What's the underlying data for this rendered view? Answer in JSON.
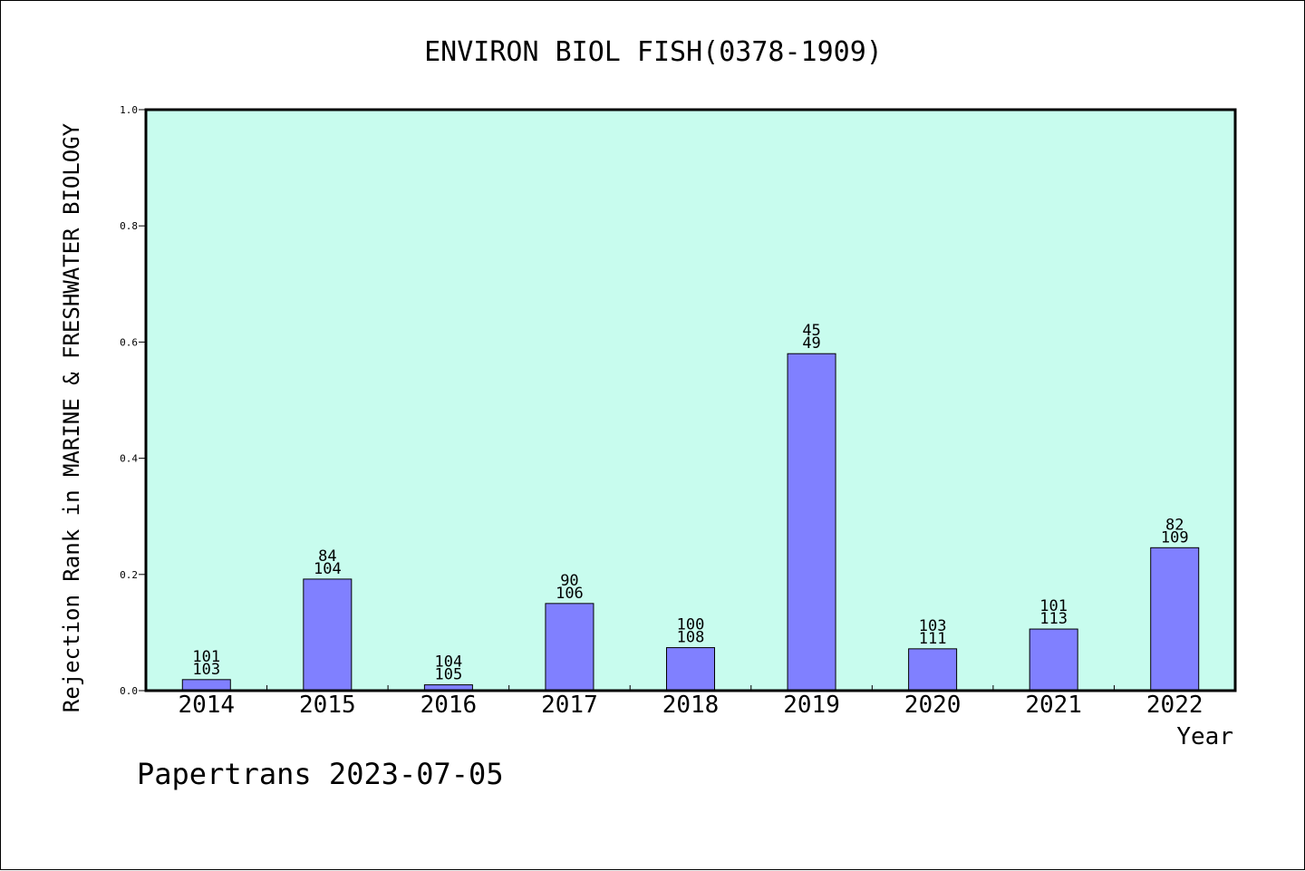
{
  "chart_data": {
    "type": "bar",
    "title": "ENVIRON BIOL FISH(0378-1909)",
    "ylabel": "Rejection Rank in MARINE & FRESHWATER BIOLOGY",
    "xlabel": "Year",
    "footer": "Papertrans 2023-07-05",
    "ylim": [
      0,
      1.0
    ],
    "yticks": [
      "0.0",
      "0.2",
      "0.4",
      "0.6",
      "0.8",
      "1.0"
    ],
    "ytick_values": [
      0,
      0.2,
      0.4,
      0.6,
      0.8,
      1.0
    ],
    "categories": [
      "2014",
      "2015",
      "2016",
      "2017",
      "2018",
      "2019",
      "2020",
      "2021",
      "2022"
    ],
    "values": [
      0.019,
      0.192,
      0.01,
      0.15,
      0.074,
      0.58,
      0.072,
      0.106,
      0.246
    ],
    "labels_top": [
      "101",
      "84",
      "104",
      "90",
      "100",
      "45",
      "103",
      "101",
      "82"
    ],
    "labels_bottom": [
      "103",
      "104",
      "105",
      "106",
      "108",
      "49",
      "111",
      "113",
      "109"
    ],
    "grid": false,
    "colors": {
      "plot_background": "#c8fcee",
      "bar_fill": "#8080ff",
      "bar_stroke": "#000000"
    }
  }
}
